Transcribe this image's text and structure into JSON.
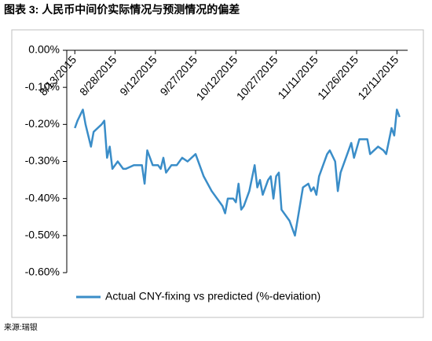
{
  "chart_data": {
    "type": "line",
    "title": "图表 3: 人民币中间价实际情况与预测情况的偏差",
    "source": "来源:瑞银",
    "x": [
      "2015-08-13",
      "2015-08-14",
      "2015-08-16",
      "2015-08-17",
      "2015-08-19",
      "2015-08-20",
      "2015-08-23",
      "2015-08-24",
      "2015-08-25",
      "2015-08-26",
      "2015-08-27",
      "2015-08-29",
      "2015-08-31",
      "2015-09-01",
      "2015-09-04",
      "2015-09-07",
      "2015-09-08",
      "2015-09-09",
      "2015-09-11",
      "2015-09-13",
      "2015-09-14",
      "2015-09-15",
      "2015-09-16",
      "2015-09-18",
      "2015-09-20",
      "2015-09-22",
      "2015-09-24",
      "2015-09-27",
      "2015-09-30",
      "2015-10-03",
      "2015-10-07",
      "2015-10-08",
      "2015-10-09",
      "2015-10-11",
      "2015-10-12",
      "2015-10-13",
      "2015-10-14",
      "2015-10-15",
      "2015-10-17",
      "2015-10-19",
      "2015-10-20",
      "2015-10-21",
      "2015-10-22",
      "2015-10-24",
      "2015-10-25",
      "2015-10-26",
      "2015-10-27",
      "2015-10-28",
      "2015-10-29",
      "2015-11-01",
      "2015-11-03",
      "2015-11-06",
      "2015-11-08",
      "2015-11-09",
      "2015-11-10",
      "2015-11-11",
      "2015-11-12",
      "2015-11-15",
      "2015-11-16",
      "2015-11-18",
      "2015-11-19",
      "2015-11-20",
      "2015-11-23",
      "2015-11-24",
      "2015-11-25",
      "2015-11-27",
      "2015-11-30",
      "2015-12-01",
      "2015-12-04",
      "2015-12-06",
      "2015-12-07",
      "2015-12-09",
      "2015-12-10",
      "2015-12-11",
      "2015-12-12"
    ],
    "series": [
      {
        "name": "Actual CNY-fixing vs predicted (%-deviation)",
        "color": "#3a8dc8",
        "values": [
          -0.21,
          -0.19,
          -0.16,
          -0.2,
          -0.26,
          -0.22,
          -0.2,
          -0.19,
          -0.29,
          -0.26,
          -0.32,
          -0.3,
          -0.32,
          -0.32,
          -0.31,
          -0.31,
          -0.36,
          -0.27,
          -0.31,
          -0.31,
          -0.32,
          -0.29,
          -0.33,
          -0.31,
          -0.31,
          -0.29,
          -0.3,
          -0.28,
          -0.34,
          -0.38,
          -0.42,
          -0.44,
          -0.4,
          -0.4,
          -0.41,
          -0.36,
          -0.43,
          -0.42,
          -0.38,
          -0.31,
          -0.37,
          -0.35,
          -0.39,
          -0.35,
          -0.34,
          -0.4,
          -0.34,
          -0.33,
          -0.43,
          -0.46,
          -0.5,
          -0.37,
          -0.36,
          -0.38,
          -0.37,
          -0.39,
          -0.34,
          -0.28,
          -0.27,
          -0.3,
          -0.38,
          -0.33,
          -0.27,
          -0.25,
          -0.29,
          -0.24,
          -0.24,
          -0.28,
          -0.26,
          -0.27,
          -0.28,
          -0.21,
          -0.23,
          -0.16,
          -0.18
        ]
      }
    ],
    "xlim": [
      "2015-08-10",
      "2015-12-15"
    ],
    "xticks": [
      {
        "value": "2015-08-13",
        "label": "8/13/2015"
      },
      {
        "value": "2015-08-28",
        "label": "8/28/2015"
      },
      {
        "value": "2015-09-12",
        "label": "9/12/2015"
      },
      {
        "value": "2015-09-27",
        "label": "9/27/2015"
      },
      {
        "value": "2015-10-12",
        "label": "10/12/2015"
      },
      {
        "value": "2015-10-27",
        "label": "10/27/2015"
      },
      {
        "value": "2015-11-11",
        "label": "11/11/2015"
      },
      {
        "value": "2015-11-26",
        "label": "11/26/2015"
      },
      {
        "value": "2015-12-11",
        "label": "12/11/2015"
      }
    ],
    "ylim": [
      -0.6,
      0
    ],
    "yticks": [
      {
        "value": 0,
        "label": "0.00%"
      },
      {
        "value": -0.1,
        "label": "-0.10%"
      },
      {
        "value": -0.2,
        "label": "-0.20%"
      },
      {
        "value": -0.3,
        "label": "-0.30%"
      },
      {
        "value": -0.4,
        "label": "-0.40%"
      },
      {
        "value": -0.5,
        "label": "-0.50%"
      },
      {
        "value": -0.6,
        "label": "-0.60%"
      }
    ],
    "grid": false,
    "legend": "bottom"
  }
}
